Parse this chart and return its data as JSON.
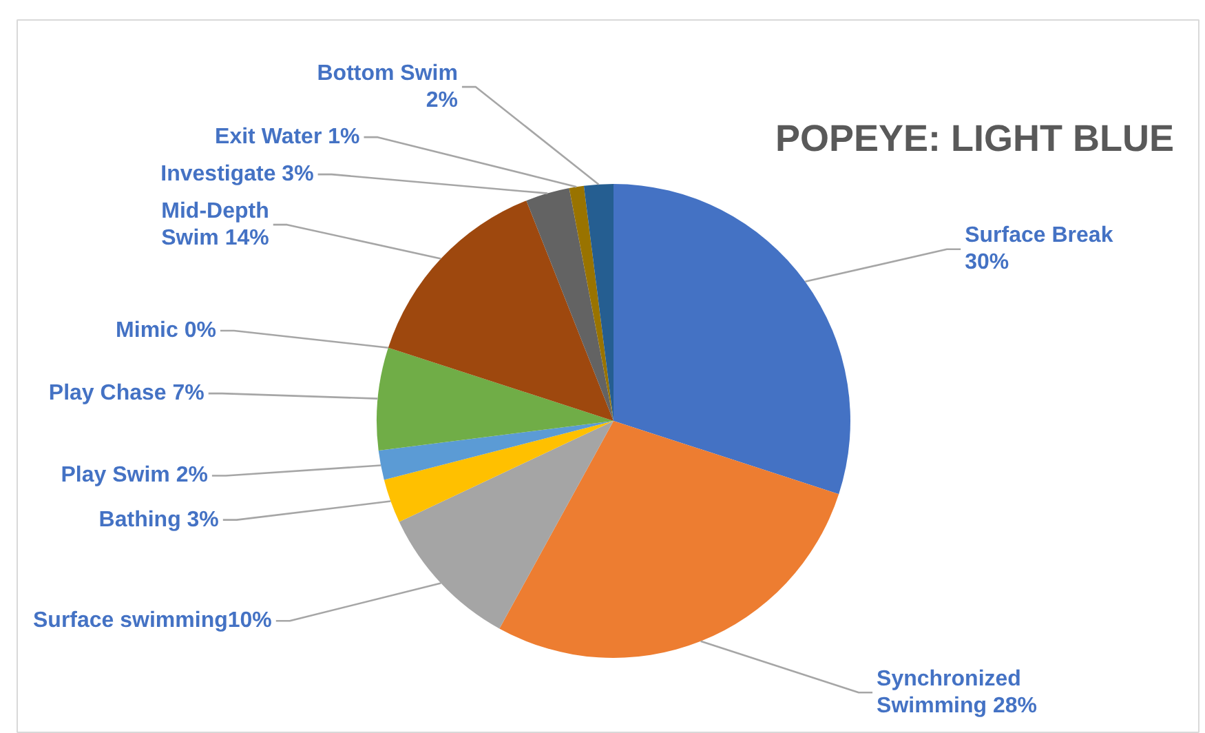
{
  "chart_data": {
    "type": "pie",
    "title": "POPEYE: LIGHT BLUE",
    "categories": [
      "Surface Break\n30%",
      "Synchronized\nSwimming 28%",
      "Surface swimming10%",
      "Bathing 3%",
      "Play Swim 2%",
      "Play Chase 7%",
      "Mimic 0%",
      "Mid-Depth\nSwim 14%",
      "Investigate 3%",
      "Exit Water 1%",
      "Bottom Swim\n2%"
    ],
    "values": [
      30,
      28,
      10,
      3,
      2,
      7,
      0,
      14,
      3,
      1,
      2
    ],
    "colors": [
      "#4472c4",
      "#ed7d31",
      "#a5a5a5",
      "#ffc000",
      "#5b9bd5",
      "#70ad47",
      "#264478",
      "#9e480e",
      "#636363",
      "#997300",
      "#255e91"
    ]
  }
}
